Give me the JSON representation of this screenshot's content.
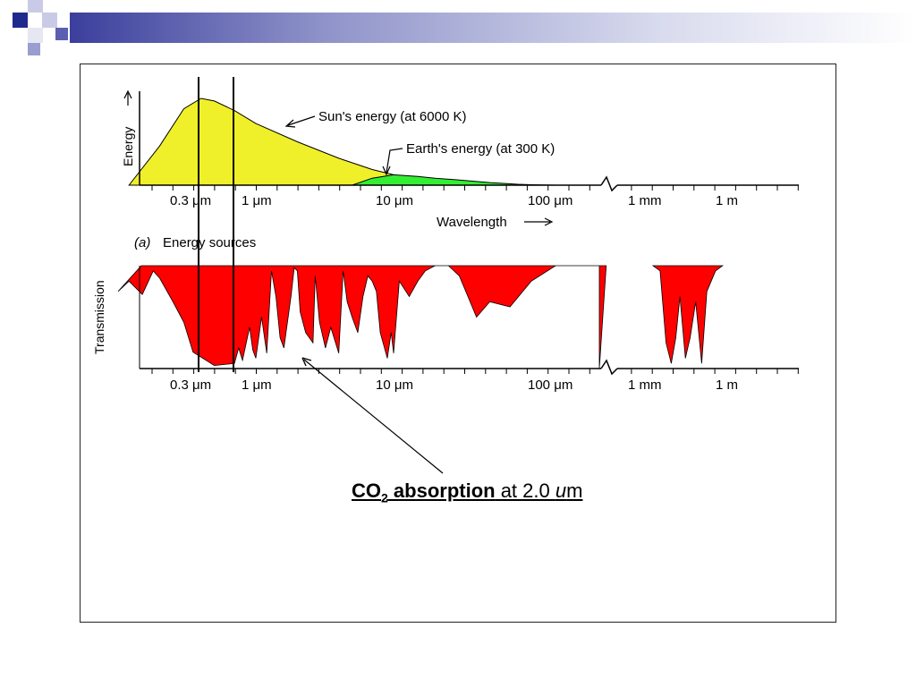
{
  "slide": {
    "caption": {
      "formula_main": "CO",
      "formula_sub": "2",
      "bold_word": " absorption",
      "rest": " at 2.0 ",
      "unit_italic": "u",
      "unit_tail": "m"
    }
  },
  "chart_data": [
    {
      "type": "area",
      "panel_label": "(a)",
      "title": "Energy sources",
      "xlabel": "Wavelength",
      "ylabel": "Energy",
      "x_scale": "log",
      "x_ticks": [
        "0.3 μm",
        "1 μm",
        "10 μm",
        "100 μm",
        "1 mm",
        "1 m"
      ],
      "series": [
        {
          "name": "Sun's energy (at 6000 K)",
          "color": "#f0f02a",
          "x_um": [
            0.12,
            0.2,
            0.3,
            0.4,
            0.5,
            0.7,
            1,
            2,
            4,
            7,
            10,
            20,
            40,
            60
          ],
          "y": [
            0,
            0.45,
            0.88,
            1.0,
            0.97,
            0.86,
            0.71,
            0.5,
            0.31,
            0.18,
            0.12,
            0.05,
            0.02,
            0.01
          ]
        },
        {
          "name": "Earth's energy (at 300 K)",
          "color": "#33ee33",
          "x_um": [
            5,
            7,
            10,
            15,
            20,
            30,
            50,
            80,
            100,
            150
          ],
          "y": [
            0,
            0.08,
            0.12,
            0.1,
            0.08,
            0.06,
            0.03,
            0.01,
            0.005,
            0
          ]
        }
      ],
      "annotations": [
        "Sun's energy (at 6000 K)",
        "Earth's energy (at 300 K)"
      ]
    },
    {
      "type": "area",
      "ylabel": "Transmission",
      "x_scale": "log",
      "x_ticks": [
        "0.3 μm",
        "1 μm",
        "10 μm",
        "100 μm",
        "1 mm",
        "1 m"
      ],
      "ylim": [
        0,
        1
      ],
      "series": [
        {
          "name": "",
          "color": "#ff0000",
          "x_um": [
            0.1,
            0.12,
            0.15,
            0.18,
            0.2,
            0.25,
            0.3,
            0.35,
            0.5,
            0.7,
            0.75,
            0.8,
            0.9,
            0.95,
            1.0,
            1.1,
            1.2,
            1.3,
            1.4,
            1.5,
            1.6,
            1.8,
            1.9,
            2.0,
            2.1,
            2.3,
            2.6,
            2.7,
            2.9,
            3.2,
            3.5,
            4.0,
            4.3,
            4.6,
            5.0,
            5.5,
            6.0,
            6.5,
            7.0,
            7.5,
            8.0,
            9.0,
            9.6,
            10.0,
            11.0,
            13.0,
            15.0,
            17.0,
            20.0,
            25.0,
            30.0,
            40.0,
            50.0,
            70.0,
            100.0,
            150.0,
            200.0,
            300.0
          ],
          "y": [
            0.25,
            0.15,
            0.28,
            0.05,
            0.12,
            0.35,
            0.55,
            0.84,
            0.97,
            0.95,
            0.8,
            0.92,
            0.6,
            0.82,
            0.9,
            0.5,
            0.85,
            0.05,
            0.3,
            0.7,
            0.8,
            0.3,
            0.02,
            0.05,
            0.45,
            0.65,
            0.75,
            0.1,
            0.55,
            0.8,
            0.6,
            0.85,
            0.05,
            0.35,
            0.5,
            0.65,
            0.3,
            0.1,
            0.15,
            0.25,
            0.65,
            0.9,
            0.65,
            0.85,
            0.15,
            0.3,
            0.15,
            0.05,
            0.0,
            0.0,
            0.1,
            0.5,
            0.35,
            0.4,
            0.15,
            0.0,
            0.0,
            0.0
          ]
        },
        {
          "name": "",
          "color": "#ff0000",
          "x_um": [
            1000,
            1200,
            1400,
            1600,
            1800,
            2000,
            2300,
            2600,
            3000,
            3500,
            4000,
            5000,
            6000
          ],
          "y": [
            1.0,
            0.95,
            0.25,
            0.05,
            0.3,
            0.7,
            0.1,
            0.3,
            0.65,
            0.05,
            0.75,
            0.95,
            1.0
          ]
        }
      ],
      "annotations": [
        "CO2 absorption at 2.0 um"
      ]
    }
  ]
}
